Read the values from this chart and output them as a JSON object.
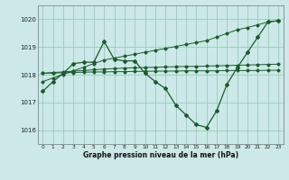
{
  "background_color": "#cce8e8",
  "grid_color": "#99ccbb",
  "line_color": "#1a5c2a",
  "xlabel": "Graphe pression niveau de la mer (hPa)",
  "ylim": [
    1015.5,
    1020.5
  ],
  "yticks": [
    1016,
    1017,
    1018,
    1019,
    1020
  ],
  "xticks": [
    0,
    1,
    2,
    3,
    4,
    5,
    6,
    7,
    8,
    9,
    10,
    11,
    12,
    13,
    14,
    15,
    16,
    17,
    18,
    19,
    20,
    21,
    22,
    23
  ],
  "series": {
    "main": [
      1017.4,
      1017.75,
      1018.05,
      1018.4,
      1018.45,
      1018.45,
      1019.2,
      1018.55,
      1018.5,
      1018.5,
      1018.05,
      1017.75,
      1017.5,
      1016.9,
      1016.55,
      1016.2,
      1016.1,
      1016.7,
      1017.65,
      1018.25,
      1018.8,
      1019.35,
      1019.9,
      1019.95
    ],
    "trend1": [
      1017.75,
      1017.88,
      1018.01,
      1018.14,
      1018.27,
      1018.4,
      1018.53,
      1018.6,
      1018.67,
      1018.74,
      1018.81,
      1018.88,
      1018.95,
      1019.02,
      1019.09,
      1019.16,
      1019.23,
      1019.36,
      1019.49,
      1019.62,
      1019.7,
      1019.8,
      1019.9,
      1019.95
    ],
    "trend2": [
      1018.05,
      1018.08,
      1018.1,
      1018.13,
      1018.15,
      1018.18,
      1018.2,
      1018.22,
      1018.24,
      1018.25,
      1018.26,
      1018.27,
      1018.28,
      1018.29,
      1018.3,
      1018.3,
      1018.31,
      1018.32,
      1018.33,
      1018.34,
      1018.35,
      1018.36,
      1018.37,
      1018.38
    ],
    "trend3": [
      1018.05,
      1018.06,
      1018.07,
      1018.08,
      1018.09,
      1018.1,
      1018.1,
      1018.11,
      1018.11,
      1018.12,
      1018.12,
      1018.13,
      1018.13,
      1018.13,
      1018.14,
      1018.14,
      1018.14,
      1018.14,
      1018.15,
      1018.15,
      1018.15,
      1018.15,
      1018.16,
      1018.16
    ]
  }
}
